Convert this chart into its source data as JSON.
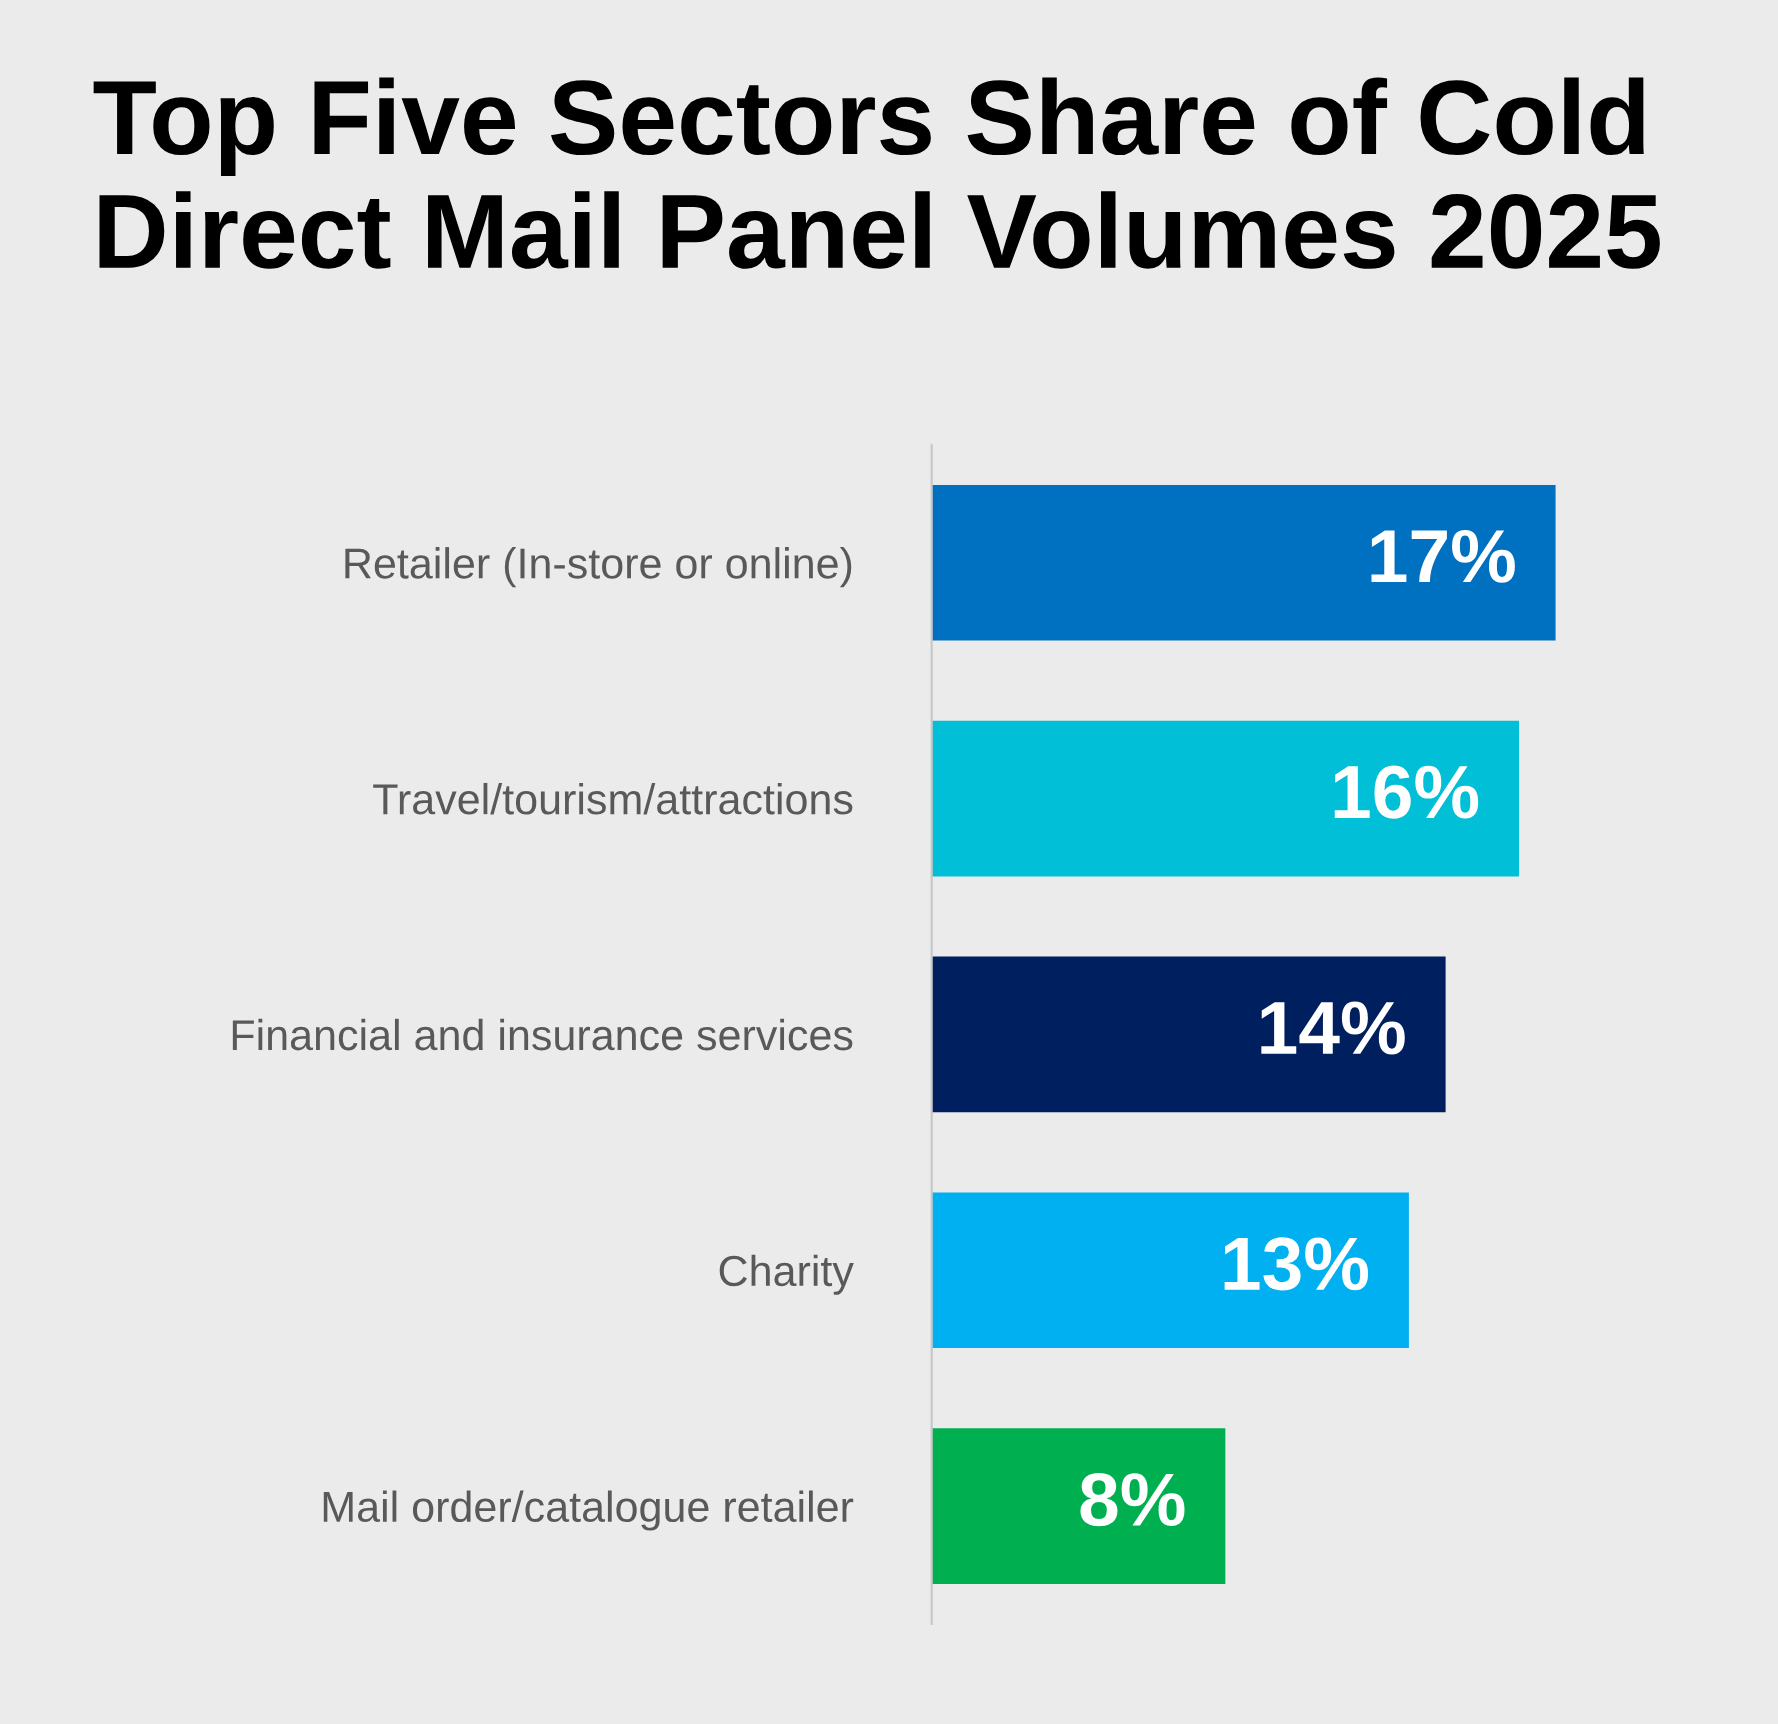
{
  "chart_data": {
    "type": "bar",
    "orientation": "horizontal",
    "title": "Top Five Sectors Share of Cold Direct Mail Panel Volumes 2025",
    "categories": [
      "Retailer (In-store or online)",
      "Travel/tourism/attractions",
      "Financial and insurance services",
      "Charity",
      "Mail order/catalogue retailer"
    ],
    "values": [
      17,
      16,
      14,
      13,
      8
    ],
    "colors": [
      "#0070c0",
      "#00bfd6",
      "#001f5f",
      "#00b0f0",
      "#00b050"
    ],
    "value_labels": [
      "17%",
      "16%",
      "14%",
      "13%",
      "8%"
    ],
    "grid": false,
    "legend": false
  }
}
